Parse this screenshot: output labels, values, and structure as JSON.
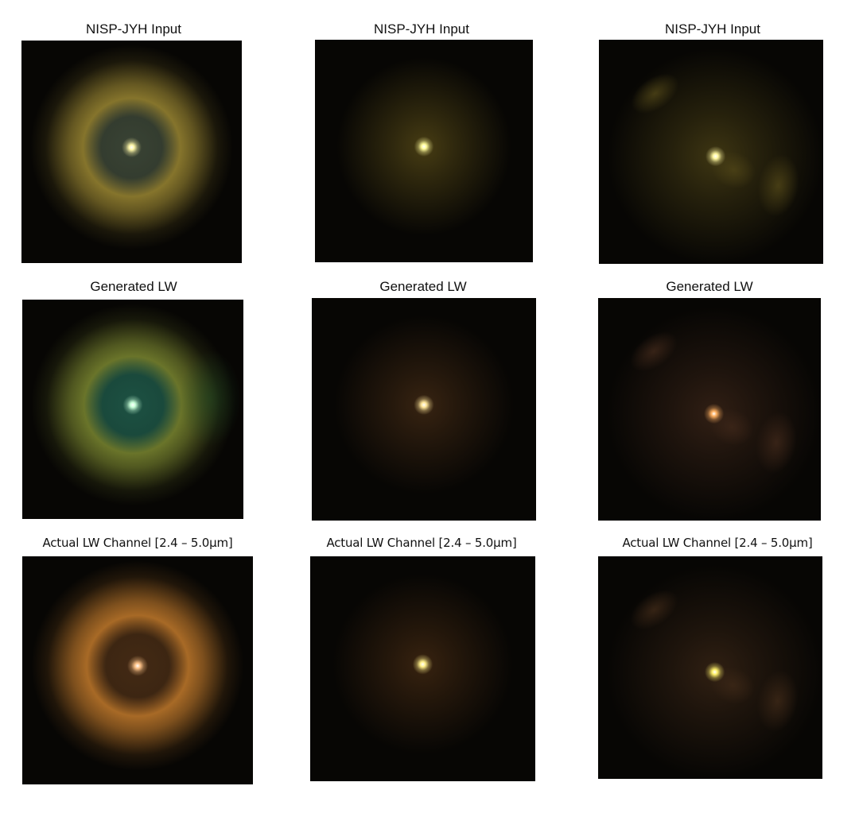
{
  "rows": [
    {
      "title": "NISP-JYH  Input",
      "panels": [
        {
          "style": "ring-yellow",
          "colors": {
            "core": "#fff7a8",
            "ring": "#8c7a2e",
            "inner": "#3f4a3a"
          }
        },
        {
          "style": "halo-faint",
          "colors": {
            "core": "#fffb9a",
            "halo": "#4a3f14"
          }
        },
        {
          "style": "arcs-faint",
          "colors": {
            "core": "#fff7a0",
            "arc": "#4b4116"
          }
        }
      ]
    },
    {
      "title": "Generated LW",
      "panels": [
        {
          "style": "ring-green",
          "colors": {
            "core": "#c8ffd8",
            "ring": "#6f7a2c",
            "inner": "#1f5a4a"
          }
        },
        {
          "style": "halo-faint",
          "colors": {
            "core": "#ffe79a",
            "halo": "#3a2512"
          }
        },
        {
          "style": "arcs-faint",
          "colors": {
            "core": "#ffb060",
            "arc": "#3b2518"
          }
        }
      ]
    },
    {
      "title": "Actual LW Channel [2.4 – 5.0μm]",
      "panels": [
        {
          "style": "ring-orange",
          "colors": {
            "core": "#ffc48a",
            "ring": "#b06f28",
            "inner": "#4a2e16"
          }
        },
        {
          "style": "halo-faint",
          "colors": {
            "core": "#fff08a",
            "halo": "#3a2410"
          }
        },
        {
          "style": "arcs-faint",
          "colors": {
            "core": "#fff16a",
            "arc": "#3a2616"
          }
        }
      ]
    }
  ]
}
